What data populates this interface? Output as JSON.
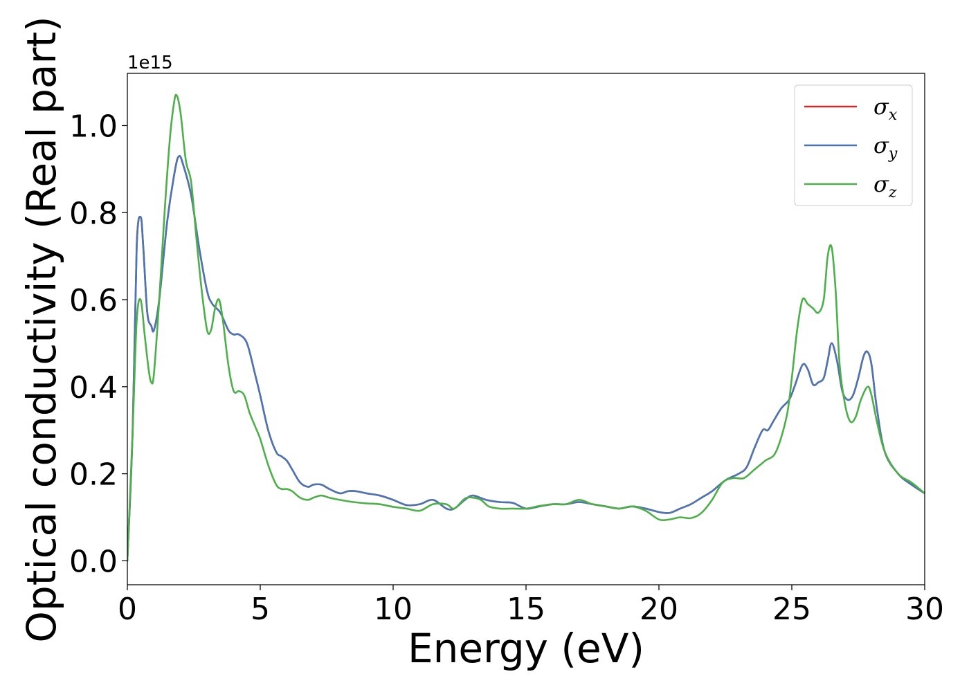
{
  "chart_data": {
    "type": "line",
    "xlabel": "Energy (eV)",
    "ylabel": "Optical conductivity (Real part)",
    "y_offset_label": "1e15",
    "xlim": [
      0,
      30
    ],
    "ylim": [
      -0.055,
      1.12
    ],
    "x_ticks": [
      0,
      5,
      10,
      15,
      20,
      25,
      30
    ],
    "x_tick_labels": [
      "0",
      "5",
      "10",
      "15",
      "20",
      "25",
      "30"
    ],
    "y_ticks": [
      0.0,
      0.2,
      0.4,
      0.6,
      0.8,
      1.0
    ],
    "y_tick_labels": [
      "0.0",
      "0.2",
      "0.4",
      "0.6",
      "0.8",
      "1.0"
    ],
    "grid": false,
    "legend_position": "top-right",
    "series": [
      {
        "name": "σx",
        "symbol": "σ",
        "subscript": "x",
        "color": "#d62728",
        "x": [
          0,
          0.2,
          0.35,
          0.5,
          0.6,
          0.75,
          0.9,
          1.0,
          1.2,
          1.5,
          1.8,
          1.95,
          2.1,
          2.4,
          2.7,
          3.0,
          3.2,
          3.5,
          3.8,
          4.0,
          4.2,
          4.5,
          4.8,
          5.0,
          5.3,
          5.6,
          5.8,
          6.0,
          6.2,
          6.5,
          6.8,
          7.0,
          7.3,
          7.6,
          8.0,
          8.3,
          8.6,
          9.0,
          9.5,
          10.0,
          10.5,
          11.0,
          11.5,
          12.0,
          12.3,
          12.7,
          13.0,
          13.5,
          14.0,
          14.5,
          15.0,
          15.5,
          16.0,
          16.5,
          17.0,
          17.5,
          18.0,
          18.5,
          19.0,
          19.5,
          20.0,
          20.4,
          20.8,
          21.2,
          21.6,
          22.0,
          22.5,
          23.0,
          23.3,
          23.6,
          23.9,
          24.1,
          24.3,
          24.6,
          24.9,
          25.1,
          25.4,
          25.6,
          25.8,
          26.0,
          26.2,
          26.35,
          26.5,
          26.7,
          26.9,
          27.1,
          27.3,
          27.5,
          27.7,
          27.85,
          28.0,
          28.2,
          28.5,
          29.0,
          29.5,
          30.0
        ],
        "y": [
          0.0,
          0.3,
          0.72,
          0.79,
          0.72,
          0.57,
          0.54,
          0.53,
          0.6,
          0.78,
          0.9,
          0.93,
          0.91,
          0.84,
          0.72,
          0.62,
          0.59,
          0.57,
          0.53,
          0.52,
          0.52,
          0.5,
          0.43,
          0.38,
          0.3,
          0.25,
          0.24,
          0.23,
          0.21,
          0.18,
          0.17,
          0.175,
          0.175,
          0.165,
          0.155,
          0.16,
          0.16,
          0.155,
          0.15,
          0.14,
          0.128,
          0.13,
          0.14,
          0.12,
          0.12,
          0.14,
          0.15,
          0.14,
          0.135,
          0.133,
          0.12,
          0.125,
          0.13,
          0.13,
          0.135,
          0.13,
          0.125,
          0.12,
          0.125,
          0.12,
          0.112,
          0.11,
          0.12,
          0.13,
          0.145,
          0.16,
          0.185,
          0.2,
          0.215,
          0.26,
          0.3,
          0.3,
          0.32,
          0.35,
          0.37,
          0.4,
          0.45,
          0.44,
          0.405,
          0.41,
          0.42,
          0.46,
          0.5,
          0.46,
          0.39,
          0.37,
          0.38,
          0.42,
          0.47,
          0.48,
          0.45,
          0.35,
          0.25,
          0.2,
          0.175,
          0.155
        ]
      },
      {
        "name": "σy",
        "symbol": "σ",
        "subscript": "y",
        "color": "#4a77b4",
        "x": [
          0,
          0.2,
          0.35,
          0.5,
          0.6,
          0.75,
          0.9,
          1.0,
          1.2,
          1.5,
          1.8,
          1.95,
          2.1,
          2.4,
          2.7,
          3.0,
          3.2,
          3.5,
          3.8,
          4.0,
          4.2,
          4.5,
          4.8,
          5.0,
          5.3,
          5.6,
          5.8,
          6.0,
          6.2,
          6.5,
          6.8,
          7.0,
          7.3,
          7.6,
          8.0,
          8.3,
          8.6,
          9.0,
          9.5,
          10.0,
          10.5,
          11.0,
          11.5,
          12.0,
          12.3,
          12.7,
          13.0,
          13.5,
          14.0,
          14.5,
          15.0,
          15.5,
          16.0,
          16.5,
          17.0,
          17.5,
          18.0,
          18.5,
          19.0,
          19.5,
          20.0,
          20.4,
          20.8,
          21.2,
          21.6,
          22.0,
          22.5,
          23.0,
          23.3,
          23.6,
          23.9,
          24.1,
          24.3,
          24.6,
          24.9,
          25.1,
          25.4,
          25.6,
          25.8,
          26.0,
          26.2,
          26.35,
          26.5,
          26.7,
          26.9,
          27.1,
          27.3,
          27.5,
          27.7,
          27.85,
          28.0,
          28.2,
          28.5,
          29.0,
          29.5,
          30.0
        ],
        "y": [
          0.0,
          0.3,
          0.72,
          0.79,
          0.72,
          0.57,
          0.54,
          0.53,
          0.6,
          0.78,
          0.9,
          0.93,
          0.91,
          0.84,
          0.72,
          0.62,
          0.59,
          0.57,
          0.53,
          0.52,
          0.52,
          0.5,
          0.43,
          0.38,
          0.3,
          0.25,
          0.24,
          0.23,
          0.21,
          0.18,
          0.17,
          0.175,
          0.175,
          0.165,
          0.155,
          0.16,
          0.16,
          0.155,
          0.15,
          0.14,
          0.128,
          0.13,
          0.14,
          0.12,
          0.12,
          0.14,
          0.15,
          0.14,
          0.135,
          0.133,
          0.12,
          0.125,
          0.13,
          0.13,
          0.135,
          0.13,
          0.125,
          0.12,
          0.125,
          0.12,
          0.112,
          0.11,
          0.12,
          0.13,
          0.145,
          0.16,
          0.185,
          0.2,
          0.215,
          0.26,
          0.3,
          0.3,
          0.32,
          0.35,
          0.37,
          0.4,
          0.45,
          0.44,
          0.405,
          0.41,
          0.42,
          0.46,
          0.5,
          0.46,
          0.39,
          0.37,
          0.38,
          0.42,
          0.47,
          0.48,
          0.45,
          0.35,
          0.25,
          0.2,
          0.175,
          0.155
        ]
      },
      {
        "name": "σz",
        "symbol": "σ",
        "subscript": "z",
        "color": "#4daf4a",
        "x": [
          0,
          0.2,
          0.35,
          0.5,
          0.65,
          0.8,
          0.9,
          1.0,
          1.2,
          1.4,
          1.6,
          1.75,
          1.85,
          2.0,
          2.2,
          2.4,
          2.6,
          2.8,
          3.0,
          3.15,
          3.3,
          3.45,
          3.6,
          3.8,
          4.0,
          4.2,
          4.4,
          4.6,
          4.8,
          5.0,
          5.3,
          5.6,
          5.8,
          6.0,
          6.2,
          6.5,
          6.8,
          7.0,
          7.3,
          7.6,
          8.0,
          8.5,
          9.0,
          9.5,
          10.0,
          10.5,
          11.0,
          11.5,
          12.0,
          12.3,
          12.7,
          13.0,
          13.3,
          13.6,
          14.0,
          14.5,
          15.0,
          15.5,
          16.0,
          16.5,
          17.0,
          17.5,
          18.0,
          18.5,
          19.0,
          19.5,
          20.0,
          20.4,
          20.8,
          21.2,
          21.6,
          22.0,
          22.4,
          22.8,
          23.2,
          23.6,
          24.0,
          24.4,
          24.8,
          25.0,
          25.2,
          25.4,
          25.6,
          25.8,
          26.0,
          26.2,
          26.35,
          26.5,
          26.65,
          26.8,
          27.0,
          27.2,
          27.4,
          27.6,
          27.85,
          28.0,
          28.2,
          28.5,
          29.0,
          29.5,
          30.0
        ],
        "y": [
          0.0,
          0.3,
          0.55,
          0.6,
          0.52,
          0.44,
          0.41,
          0.43,
          0.6,
          0.8,
          0.97,
          1.05,
          1.07,
          1.03,
          0.92,
          0.87,
          0.74,
          0.62,
          0.53,
          0.53,
          0.58,
          0.6,
          0.55,
          0.45,
          0.39,
          0.39,
          0.38,
          0.34,
          0.31,
          0.28,
          0.22,
          0.175,
          0.165,
          0.165,
          0.16,
          0.145,
          0.14,
          0.145,
          0.15,
          0.145,
          0.14,
          0.135,
          0.132,
          0.13,
          0.124,
          0.12,
          0.115,
          0.13,
          0.13,
          0.12,
          0.143,
          0.145,
          0.14,
          0.125,
          0.12,
          0.12,
          0.12,
          0.126,
          0.13,
          0.13,
          0.14,
          0.13,
          0.125,
          0.12,
          0.125,
          0.115,
          0.095,
          0.095,
          0.1,
          0.098,
          0.11,
          0.14,
          0.18,
          0.19,
          0.19,
          0.21,
          0.23,
          0.25,
          0.33,
          0.42,
          0.53,
          0.6,
          0.59,
          0.58,
          0.57,
          0.6,
          0.7,
          0.72,
          0.62,
          0.45,
          0.36,
          0.32,
          0.33,
          0.37,
          0.4,
          0.38,
          0.32,
          0.25,
          0.2,
          0.18,
          0.155
        ]
      }
    ]
  }
}
